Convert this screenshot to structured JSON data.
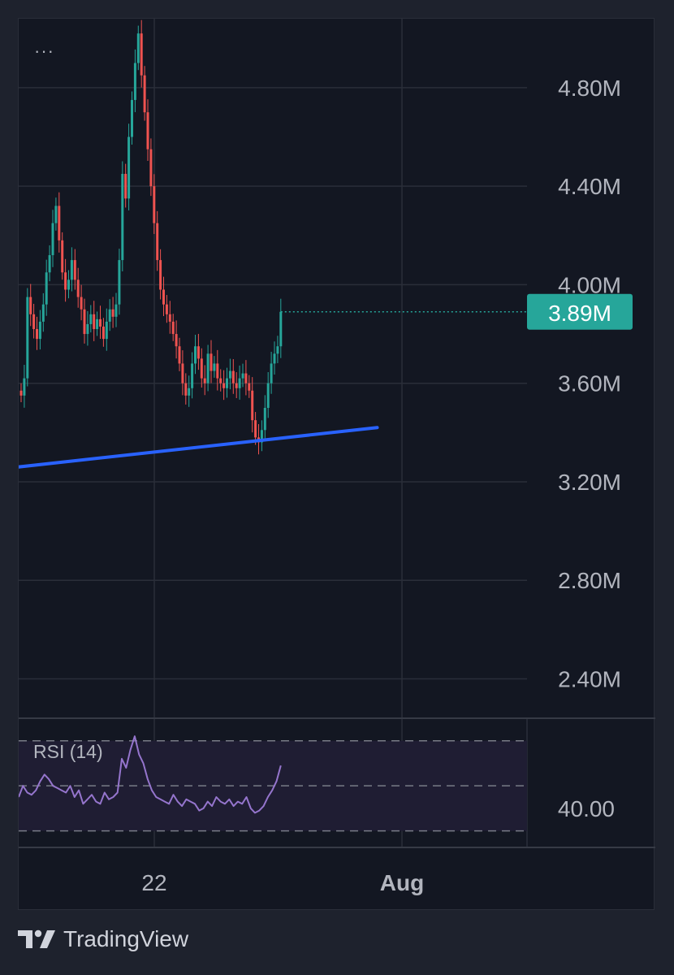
{
  "menu": {
    "more_label": "···"
  },
  "brand": {
    "name": "TradingView",
    "icon": "tradingview-logo-icon"
  },
  "colors": {
    "background": "#131722",
    "outer": "#1e222d",
    "grid": "#2a2e39",
    "up": "#26a69a",
    "down": "#ef5350",
    "trendline": "#2962ff",
    "price_line": "#26a69a",
    "rsi_line": "#9575cd",
    "rsi_band": "#1f1d33",
    "axis_text": "#b2b5be"
  },
  "chart_data": [
    {
      "type": "candlestick",
      "title": "",
      "ylim": [
        2.24,
        5.08
      ],
      "y_ticks": [
        {
          "value": 4.8,
          "label": "4.80M"
        },
        {
          "value": 4.4,
          "label": "4.40M"
        },
        {
          "value": 4.0,
          "label": "4.00M"
        },
        {
          "value": 3.6,
          "label": "3.60M"
        },
        {
          "value": 3.2,
          "label": "3.20M"
        },
        {
          "value": 2.8,
          "label": "2.80M"
        },
        {
          "value": 2.4,
          "label": "2.40M"
        }
      ],
      "x_ticks": [
        {
          "label": "22",
          "date": "2024-07-22"
        },
        {
          "label": "Aug",
          "date": "2024-08-01"
        }
      ],
      "last_price": {
        "value": 3.89,
        "label": "3.89M"
      },
      "trendline": {
        "start": {
          "date": "2024-07-16T12:00",
          "value": 3.26
        },
        "end": {
          "date": "2024-07-31T00:00",
          "value": 3.42
        }
      },
      "closes": [
        3.55,
        3.62,
        3.95,
        3.88,
        3.82,
        3.78,
        3.85,
        3.92,
        4.05,
        4.12,
        4.25,
        4.32,
        4.18,
        4.05,
        3.98,
        4.02,
        4.1,
        4.02,
        3.95,
        3.9,
        3.8,
        3.84,
        3.88,
        3.82,
        3.86,
        3.83,
        3.78,
        3.85,
        3.9,
        3.87,
        3.92,
        4.1,
        4.45,
        4.35,
        4.6,
        4.75,
        4.9,
        5.02,
        4.85,
        4.7,
        4.55,
        4.4,
        4.25,
        4.1,
        3.98,
        3.92,
        3.88,
        3.85,
        3.8,
        3.75,
        3.68,
        3.6,
        3.55,
        3.58,
        3.68,
        3.75,
        3.7,
        3.62,
        3.6,
        3.72,
        3.65,
        3.68,
        3.62,
        3.6,
        3.58,
        3.62,
        3.65,
        3.6,
        3.58,
        3.62,
        3.64,
        3.6,
        3.57,
        3.45,
        3.38,
        3.36,
        3.41,
        3.5,
        3.6,
        3.68,
        3.72,
        3.75,
        3.89
      ]
    },
    {
      "type": "line",
      "series": [
        {
          "name": "RSI (14)",
          "values": [
            45,
            50,
            47,
            46,
            48,
            52,
            55,
            53,
            50,
            49,
            48,
            47,
            50,
            45,
            48,
            42,
            44,
            46,
            43,
            42,
            47,
            44,
            45,
            47,
            62,
            58,
            66,
            72,
            64,
            60,
            53,
            48,
            45,
            44,
            43,
            42,
            46,
            43,
            41,
            44,
            43,
            42,
            39,
            40,
            43,
            41,
            45,
            43,
            42,
            44,
            41,
            43,
            42,
            45,
            40,
            38,
            39,
            41,
            45,
            48,
            52,
            59
          ]
        }
      ],
      "ylim": [
        23,
        80
      ],
      "y_ticks": [
        {
          "value": 40,
          "label": "40.00"
        }
      ],
      "bands": [
        30,
        50,
        70
      ]
    }
  ]
}
